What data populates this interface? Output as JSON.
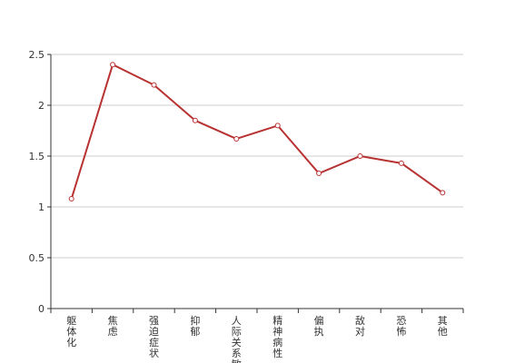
{
  "chart_data": {
    "type": "line",
    "categories": [
      "躯体化",
      "焦虑",
      "强迫症状",
      "抑郁",
      "人际关系敏感",
      "精神病性",
      "偏执",
      "敌对",
      "恐怖",
      "其他"
    ],
    "series": [
      {
        "values": [
          1.08,
          2.4,
          2.2,
          1.85,
          1.67,
          1.8,
          1.33,
          1.5,
          1.43,
          1.14
        ]
      }
    ],
    "yticks": [
      "0",
      "0.5",
      "1",
      "1.5",
      "2",
      "2.5"
    ],
    "ylim": [
      0,
      2.5
    ],
    "grid": true,
    "colors": {
      "line": "#b83232",
      "grid": "#cccccc",
      "axis": "#333333"
    }
  }
}
